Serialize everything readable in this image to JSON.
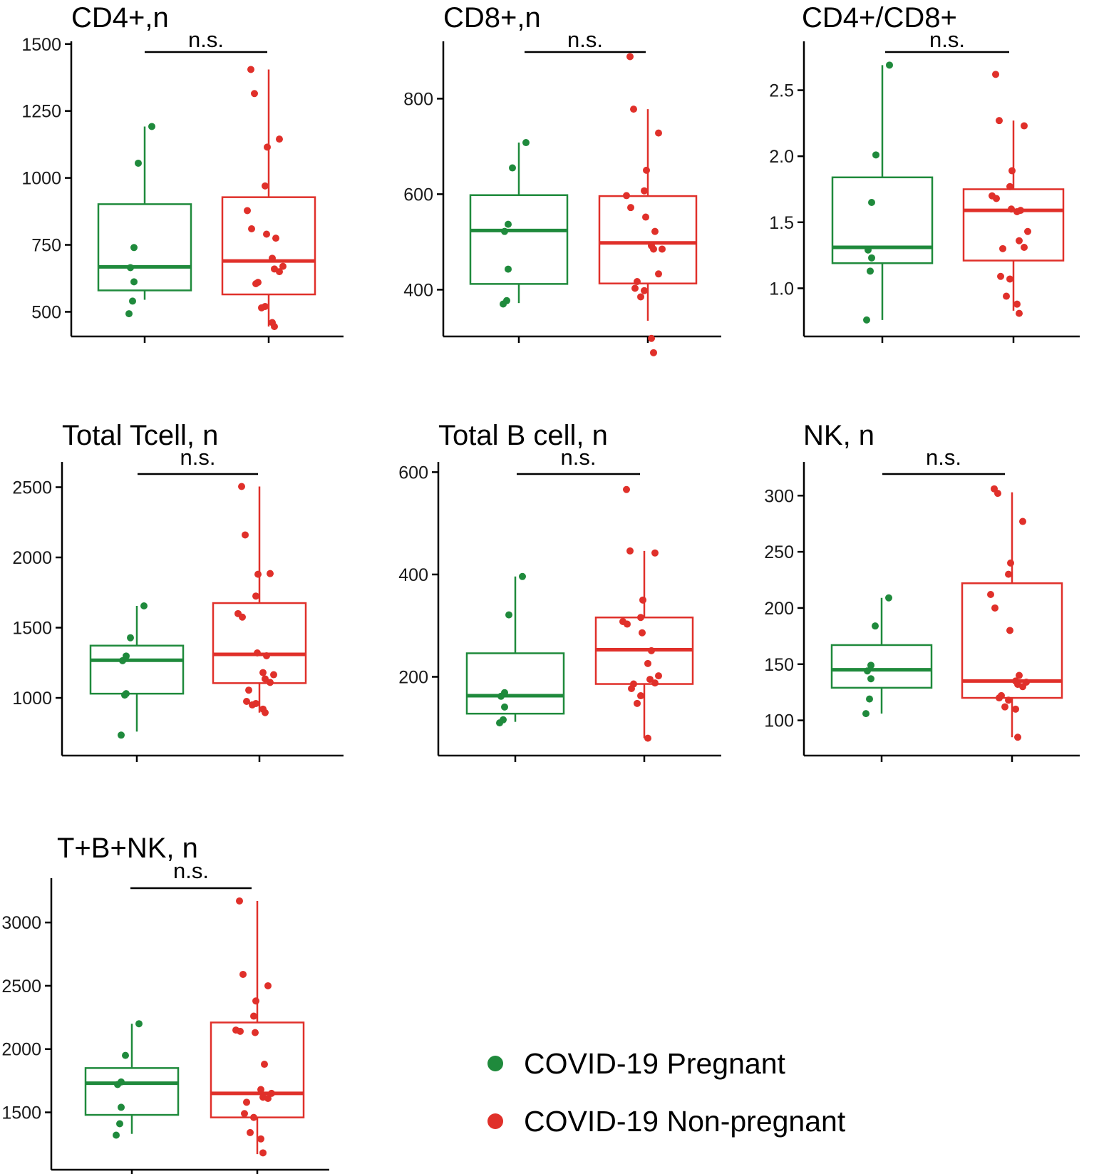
{
  "colors": {
    "pregnant": "#1f8a3c",
    "nonpregnant": "#e0302a",
    "axis": "#000000"
  },
  "legend": {
    "items": [
      {
        "key": "pregnant",
        "label": "COVID-19 Pregnant"
      },
      {
        "key": "nonpregnant",
        "label": "COVID-19 Non-pregnant"
      }
    ]
  },
  "chart_data": [
    {
      "type": "box",
      "title": "CD4+,n",
      "significance": "n.s.",
      "ylim": [
        440,
        1510
      ],
      "yticks": [
        500,
        750,
        1000,
        1250,
        1500
      ],
      "groups": [
        "COVID-19 Pregnant",
        "COVID-19 Non-pregnant"
      ],
      "boxes": [
        {
          "q1": 580,
          "median": 668,
          "q3": 902,
          "whisker_low": 545,
          "whisker_high": 1192,
          "points": [
            1192,
            1055,
            740,
            665,
            612,
            540,
            493
          ]
        },
        {
          "q1": 565,
          "median": 690,
          "q3": 928,
          "whisker_low": 445,
          "whisker_high": 1405,
          "points": [
            1405,
            1315,
            1145,
            1115,
            970,
            878,
            810,
            790,
            775,
            700,
            670,
            660,
            650,
            610,
            605,
            520,
            515,
            460,
            445
          ]
        }
      ]
    },
    {
      "type": "box",
      "title": "CD8+,n",
      "significance": "n.s.",
      "ylim": [
        320,
        920
      ],
      "yticks": [
        400,
        600,
        800
      ],
      "groups": [
        "COVID-19 Pregnant",
        "COVID-19 Non-pregnant"
      ],
      "boxes": [
        {
          "q1": 412,
          "median": 524,
          "q3": 598,
          "whisker_low": 372,
          "whisker_high": 708,
          "points": [
            708,
            655,
            537,
            522,
            443,
            377,
            370
          ]
        },
        {
          "q1": 413,
          "median": 498,
          "q3": 596,
          "whisker_low": 335,
          "whisker_high": 778,
          "points": [
            888,
            778,
            728,
            650,
            607,
            597,
            572,
            552,
            522,
            492,
            485,
            485,
            433,
            417,
            403,
            398,
            385,
            298,
            268
          ]
        }
      ]
    },
    {
      "type": "box",
      "title": "CD4+/CD8+",
      "significance": "n.s.",
      "ylim": [
        0.7,
        2.87
      ],
      "yticks": [
        1.0,
        1.5,
        2.0,
        2.5
      ],
      "groups": [
        "COVID-19 Pregnant",
        "COVID-19 Non-pregnant"
      ],
      "boxes": [
        {
          "q1": 1.19,
          "median": 1.31,
          "q3": 1.84,
          "whisker_low": 0.76,
          "whisker_high": 2.69,
          "points": [
            2.69,
            2.01,
            1.65,
            1.29,
            1.23,
            1.13,
            0.76
          ]
        },
        {
          "q1": 1.21,
          "median": 1.59,
          "q3": 1.75,
          "whisker_low": 0.83,
          "whisker_high": 2.27,
          "points": [
            2.62,
            2.27,
            2.23,
            1.89,
            1.77,
            1.7,
            1.68,
            1.6,
            1.59,
            1.58,
            1.43,
            1.36,
            1.31,
            1.3,
            1.09,
            1.07,
            0.94,
            0.88,
            0.81
          ]
        }
      ]
    },
    {
      "type": "box",
      "title": "Total Tcell, n",
      "significance": "n.s.",
      "ylim": [
        640,
        2680
      ],
      "yticks": [
        1000,
        1500,
        2000,
        2500
      ],
      "groups": [
        "COVID-19 Pregnant",
        "COVID-19 Non-pregnant"
      ],
      "boxes": [
        {
          "q1": 1030,
          "median": 1268,
          "q3": 1372,
          "whisker_low": 760,
          "whisker_high": 1655,
          "points": [
            1655,
            1428,
            1298,
            1265,
            1030,
            1020,
            735
          ]
        },
        {
          "q1": 1105,
          "median": 1310,
          "q3": 1675,
          "whisker_low": 895,
          "whisker_high": 2505,
          "points": [
            2505,
            2160,
            1885,
            1880,
            1725,
            1600,
            1575,
            1320,
            1300,
            1180,
            1165,
            1135,
            1110,
            1055,
            975,
            960,
            950,
            920,
            895
          ]
        }
      ]
    },
    {
      "type": "box",
      "title": "Total B cell, n",
      "significance": "n.s.",
      "ylim": [
        60,
        620
      ],
      "yticks": [
        200,
        400,
        600
      ],
      "groups": [
        "COVID-19 Pregnant",
        "COVID-19 Non-pregnant"
      ],
      "boxes": [
        {
          "q1": 128,
          "median": 163,
          "q3": 246,
          "whisker_low": 112,
          "whisker_high": 396,
          "points": [
            396,
            321,
            169,
            162,
            141,
            116,
            110
          ]
        },
        {
          "q1": 186,
          "median": 253,
          "q3": 316,
          "whisker_low": 80,
          "whisker_high": 446,
          "points": [
            566,
            446,
            442,
            350,
            316,
            308,
            303,
            286,
            251,
            226,
            202,
            195,
            188,
            186,
            177,
            163,
            148,
            80
          ]
        }
      ]
    },
    {
      "type": "box",
      "title": "NK, n",
      "significance": "n.s.",
      "ylim": [
        75,
        330
      ],
      "yticks": [
        100,
        150,
        200,
        250,
        300
      ],
      "groups": [
        "COVID-19 Pregnant",
        "COVID-19 Non-pregnant"
      ],
      "boxes": [
        {
          "q1": 129,
          "median": 145,
          "q3": 167,
          "whisker_low": 106,
          "whisker_high": 209,
          "points": [
            209,
            184,
            149,
            144,
            137,
            119,
            106
          ]
        },
        {
          "q1": 120,
          "median": 135,
          "q3": 222,
          "whisker_low": 85,
          "whisker_high": 303,
          "points": [
            306,
            302,
            277,
            240,
            230,
            212,
            200,
            180,
            140,
            135,
            134,
            132,
            130,
            122,
            120,
            118,
            112,
            110,
            85
          ]
        }
      ]
    },
    {
      "type": "box",
      "title": "T+B+NK, n",
      "significance": "n.s.",
      "ylim": [
        1120,
        3350
      ],
      "yticks": [
        1500,
        2000,
        2500,
        3000
      ],
      "groups": [
        "COVID-19 Pregnant",
        "COVID-19 Non-pregnant"
      ],
      "boxes": [
        {
          "q1": 1480,
          "median": 1730,
          "q3": 1850,
          "whisker_low": 1330,
          "whisker_high": 2200,
          "points": [
            2200,
            1950,
            1740,
            1720,
            1540,
            1410,
            1320
          ]
        },
        {
          "q1": 1460,
          "median": 1650,
          "q3": 2210,
          "whisker_low": 1170,
          "whisker_high": 3170,
          "points": [
            3170,
            2590,
            2500,
            2380,
            2260,
            2150,
            2140,
            2130,
            1880,
            1680,
            1650,
            1620,
            1610,
            1580,
            1490,
            1460,
            1340,
            1290,
            1180
          ]
        }
      ]
    }
  ]
}
